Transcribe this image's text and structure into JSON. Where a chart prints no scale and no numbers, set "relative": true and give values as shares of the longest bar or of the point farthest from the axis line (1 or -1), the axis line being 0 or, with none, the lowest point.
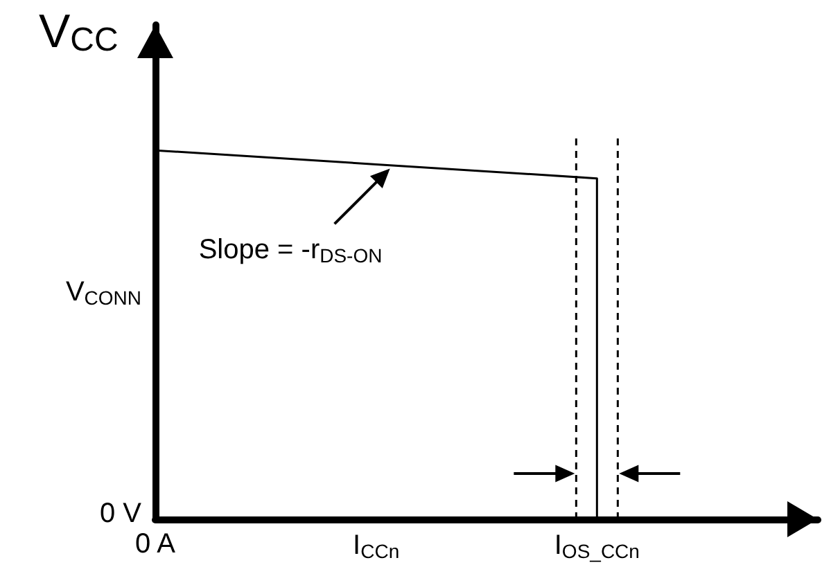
{
  "chart_data": {
    "type": "line",
    "ylabel": "V$_{CC}$",
    "relative": true,
    "categories": [
      "0 A",
      "I$_{CCn}$",
      "I$_{OS_CCn}$",
      null
    ],
    "series": [
      {
        "color": "#000000",
        "x": [
          "0 A",
          "I$_{CCn}$",
          "I$_{OS_CCn}$",
          "I$_{OS_CCn}$"
        ],
        "values": [
          1,
          0.962,
          0.924,
          0
        ]
      }
    ],
    "ref_lines": [
      {
        "axis": "x",
        "value": "I$_{OS_CCn}$",
        "color": "#000000",
        "line_style": "dashed"
      },
      {
        "axis": "x",
        "value": "I$_{OS_CCn}$",
        "color": "#000000",
        "line_style": "dashed"
      }
    ],
    "annotations": [
      {
        "text": "Slope = -r$_{DS-ON}$",
        "x": "I$_{CCn}$",
        "y": 0.962
      },
      "V$_{CONN}$",
      "0 V"
    ],
    "grid": false,
    "marker": "none",
    "line_style": "solid"
  }
}
